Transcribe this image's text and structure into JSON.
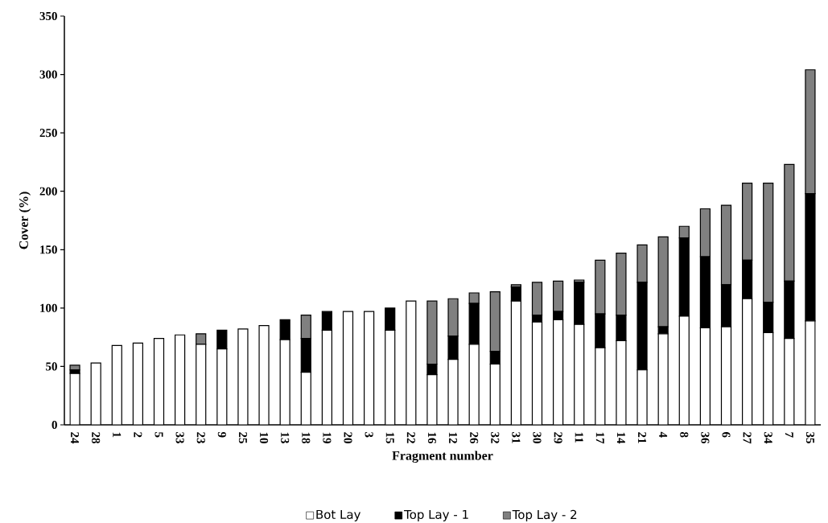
{
  "chart_data": {
    "type": "bar",
    "stacked": true,
    "xlabel": "Fragment number",
    "ylabel": "Cover (%)",
    "categories": [
      "24",
      "28",
      "1",
      "2",
      "5",
      "33",
      "23",
      "9",
      "25",
      "10",
      "13",
      "18",
      "19",
      "20",
      "3",
      "15",
      "22",
      "16",
      "12",
      "26",
      "32",
      "31",
      "30",
      "29",
      "11",
      "17",
      "14",
      "21",
      "4",
      "8",
      "36",
      "6",
      "27",
      "34",
      "7",
      "35"
    ],
    "series": [
      {
        "name": "Bot Lay",
        "color": "#ffffff",
        "values": [
          44,
          53,
          68,
          70,
          74,
          77,
          69,
          65,
          82,
          85,
          73,
          45,
          81,
          97,
          97,
          81,
          106,
          43,
          56,
          69,
          52,
          106,
          88,
          90,
          86,
          66,
          72,
          47,
          78,
          93,
          83,
          84,
          108,
          79,
          74,
          89
        ]
      },
      {
        "name": "Top Lay - 1",
        "color": "#000000",
        "values": [
          3,
          0,
          0,
          0,
          0,
          0,
          0,
          16,
          0,
          null,
          17,
          29,
          16,
          0,
          0,
          19,
          0,
          9,
          20,
          35,
          11,
          12,
          6,
          7,
          36,
          29,
          22,
          75,
          6,
          67,
          61,
          36,
          33,
          26,
          49,
          109
        ]
      },
      {
        "name": "Top Lay - 2",
        "color": "#808080",
        "values": [
          4,
          0,
          0,
          0,
          0,
          0,
          9,
          0,
          0,
          0,
          0,
          20,
          0,
          0,
          0,
          0,
          0,
          54,
          32,
          9,
          51,
          2,
          28,
          26,
          2,
          46,
          53,
          32,
          77,
          10,
          41,
          68,
          66,
          102,
          100,
          106
        ]
      }
    ],
    "ylim": [
      0,
      350
    ],
    "yticks": [
      0,
      50,
      100,
      150,
      200,
      250,
      300,
      350
    ],
    "legend": "bottom"
  }
}
